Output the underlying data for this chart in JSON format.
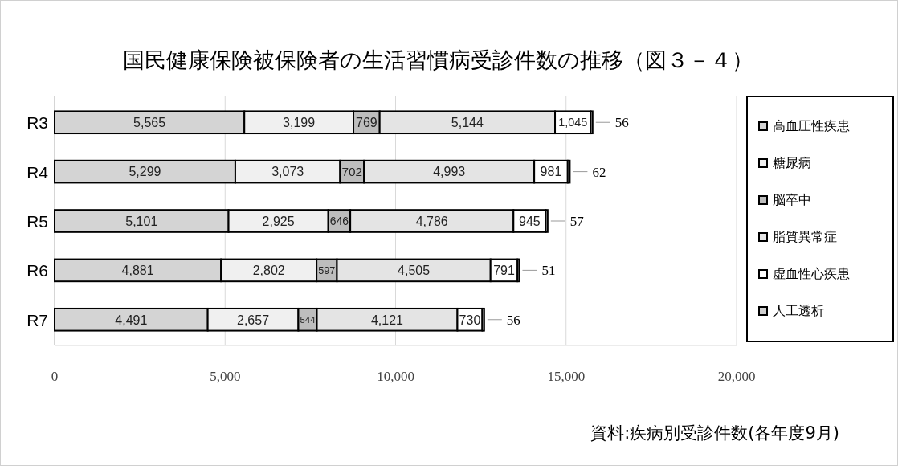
{
  "chart_data": {
    "type": "bar",
    "orientation": "horizontal",
    "stacked": true,
    "title": "国民健康保険被保険者の生活習慣病受診件数の推移（図３－４）",
    "categories": [
      "R3",
      "R4",
      "R5",
      "R6",
      "R7"
    ],
    "series": [
      {
        "name": "高血圧性疾患",
        "color": "#d4d4d4",
        "values": [
          5565,
          5299,
          5101,
          4881,
          4491
        ],
        "value_labels": [
          "5,565",
          "5,299",
          "5,101",
          "4,881",
          "4,491"
        ]
      },
      {
        "name": "糖尿病",
        "color": "#f0f0f0",
        "values": [
          3199,
          3073,
          2925,
          2802,
          2657
        ],
        "value_labels": [
          "3,199",
          "3,073",
          "2,925",
          "2,802",
          "2,657"
        ]
      },
      {
        "name": "脳卒中",
        "color": "#bdbdbd",
        "values": [
          769,
          702,
          646,
          597,
          544
        ],
        "value_labels": [
          "769",
          "702",
          "646",
          "597",
          "544"
        ]
      },
      {
        "name": "脂質異常症",
        "color": "#e4e4e4",
        "values": [
          5144,
          4993,
          4786,
          4505,
          4121
        ],
        "value_labels": [
          "5,144",
          "4,993",
          "4,786",
          "4,505",
          "4,121"
        ]
      },
      {
        "name": "虚血性心疾患",
        "color": "#ffffff",
        "values": [
          1045,
          981,
          945,
          791,
          730
        ],
        "value_labels": [
          "1,045",
          "981",
          "945",
          "791",
          "730"
        ]
      },
      {
        "name": "人工透析",
        "color": "#cfcfcf",
        "values": [
          56,
          62,
          57,
          51,
          56
        ],
        "value_labels": [
          "56",
          "62",
          "57",
          "51",
          "56"
        ]
      }
    ],
    "xlim": [
      0,
      20000
    ],
    "xticks": [
      {
        "value": 0,
        "label": "0"
      },
      {
        "value": 5000,
        "label": "5,000"
      },
      {
        "value": 10000,
        "label": "10,000"
      },
      {
        "value": 15000,
        "label": "15,000"
      },
      {
        "value": 20000,
        "label": "20,000"
      }
    ],
    "grid": "x",
    "legend": "right",
    "annotations": [
      "資料:疾病別受診件数(各年度9月)"
    ]
  }
}
